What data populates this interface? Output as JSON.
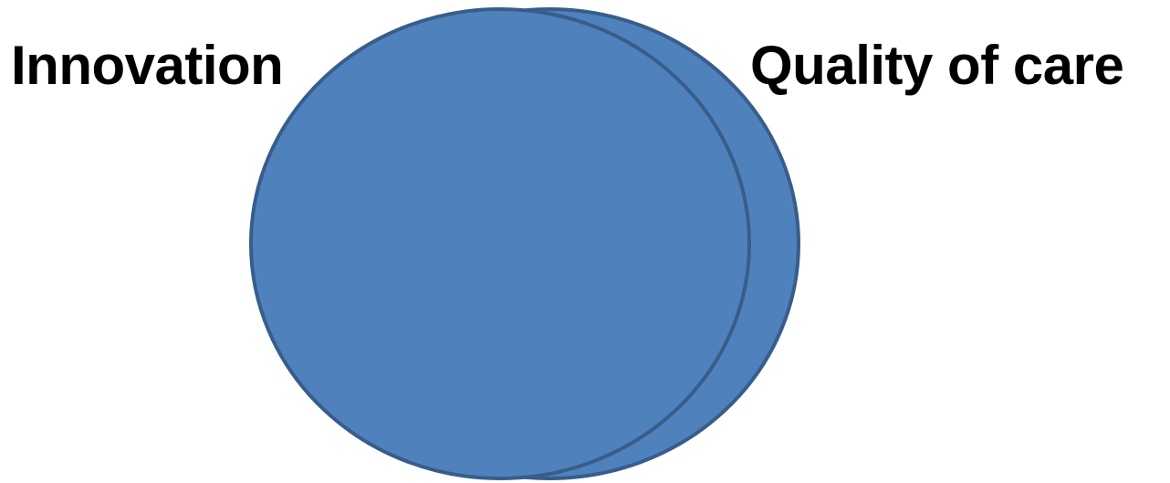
{
  "labels": {
    "left": "Innovation",
    "right": "Quality of care"
  },
  "colors": {
    "circle_fill": "#4f81bd",
    "circle_stroke": "#385d8a",
    "text": "#000000",
    "background": "#ffffff"
  }
}
